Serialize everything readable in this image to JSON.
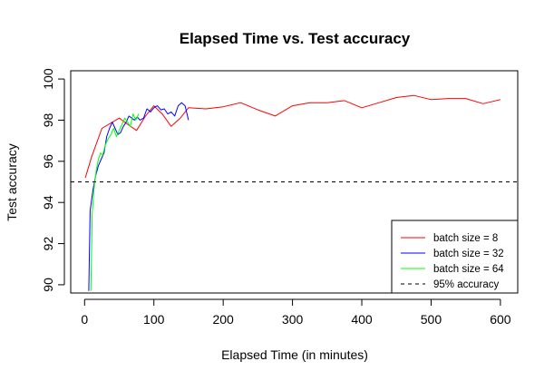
{
  "chart_data": {
    "type": "line",
    "title": "Elapsed Time vs. Test accuracy",
    "xlabel": "Elapsed Time (in minutes)",
    "ylabel": "Test accuracy",
    "xlim": [
      -20,
      625
    ],
    "ylim": [
      89.6,
      100.4
    ],
    "xticks": [
      0,
      100,
      200,
      300,
      400,
      500,
      600
    ],
    "yticks": [
      90,
      92,
      94,
      96,
      98,
      100
    ],
    "grid": false,
    "legend_position": "bottom-right",
    "series": [
      {
        "name": "batch size = 8",
        "color": "#ff0000",
        "x": [
          1,
          10,
          25,
          40,
          50,
          62,
          75,
          88,
          100,
          112,
          125,
          138,
          150,
          175,
          200,
          225,
          250,
          275,
          300,
          325,
          350,
          375,
          400,
          425,
          450,
          475,
          500,
          525,
          550,
          575,
          600
        ],
        "y": [
          95.2,
          96.2,
          97.6,
          97.9,
          98.1,
          97.8,
          97.5,
          98.2,
          98.7,
          98.3,
          97.7,
          98.1,
          98.6,
          98.55,
          98.65,
          98.85,
          98.5,
          98.2,
          98.7,
          98.85,
          98.85,
          98.95,
          98.6,
          98.85,
          99.1,
          99.2,
          99.0,
          99.05,
          99.05,
          98.8,
          99.0
        ]
      },
      {
        "name": "batch size = 32",
        "color": "#0000ff",
        "x": [
          6,
          8,
          12,
          16,
          20,
          24,
          28,
          32,
          36,
          40,
          44,
          48,
          52,
          56,
          60,
          64,
          68,
          72,
          76,
          80,
          85,
          90,
          95,
          100,
          105,
          110,
          115,
          120,
          125,
          130,
          135,
          140,
          145,
          150
        ],
        "y": [
          89.7,
          93.6,
          94.6,
          95.3,
          95.8,
          96.1,
          96.4,
          97.2,
          97.6,
          97.9,
          97.6,
          97.3,
          97.4,
          97.7,
          97.9,
          98.2,
          98.1,
          98.0,
          98.15,
          98.0,
          98.1,
          98.55,
          98.4,
          98.6,
          98.7,
          98.5,
          98.55,
          98.3,
          98.4,
          98.2,
          98.7,
          98.85,
          98.7,
          98.0
        ]
      },
      {
        "name": "batch size = 64",
        "color": "#00ff00",
        "x": [
          9,
          11,
          14,
          17,
          20,
          23,
          26,
          30,
          34,
          38,
          42,
          46,
          50,
          54,
          58,
          62,
          66,
          70,
          74,
          78
        ],
        "y": [
          89.7,
          93.5,
          94.8,
          95.6,
          96.1,
          96.4,
          96.3,
          96.8,
          97.1,
          97.3,
          97.6,
          97.2,
          97.5,
          97.8,
          98.1,
          97.9,
          97.7,
          98.3,
          98.0,
          98.3
        ]
      },
      {
        "name": "95% accuracy",
        "color": "#000000",
        "dashed": true,
        "y_constant": 95
      }
    ]
  }
}
